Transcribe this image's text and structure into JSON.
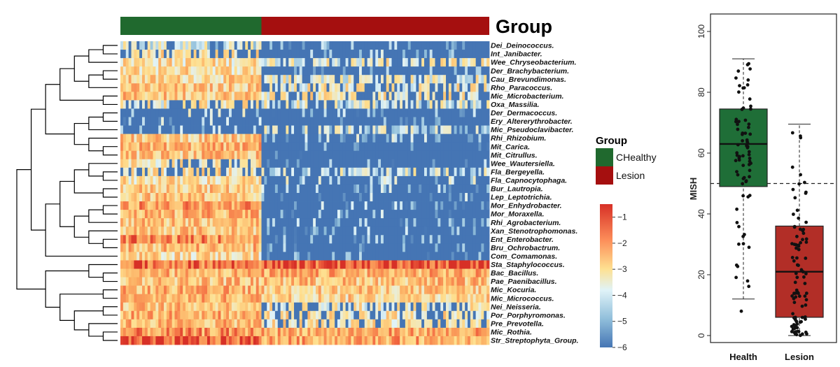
{
  "chart_data": [
    {
      "type": "heatmap",
      "title": "",
      "annotation": {
        "title": "Group",
        "groups": [
          {
            "name": "CHealthy",
            "count": 52,
            "color": "#20692e"
          },
          {
            "name": "Lesion",
            "count": 84,
            "color": "#a50f0f"
          }
        ]
      },
      "legend": {
        "title": "Group",
        "entries": [
          "CHealthy",
          "Lesion"
        ]
      },
      "rows": [
        "Dei_Deinococcus.",
        "Int_Janibacter.",
        "Wee_Chryseobacterium.",
        "Der_Brachybacterium.",
        "Cau_Brevundimonas.",
        "Rho_Paracoccus.",
        "Mic_Microbacterium.",
        "Oxa_Massilia.",
        "Der_Dermacoccus.",
        "Ery_Altererythrobacter.",
        "Mic_Pseudoclavibacter.",
        "Rhi_Rhizobium.",
        "Mit_Carica.",
        "Mit_Citrullus.",
        "Wee_Wautersiella.",
        "Fla_Bergeyella.",
        "Fla_Capnocytophaga.",
        "Bur_Lautropia.",
        "Lep_Leptotrichia.",
        "Mor_Enhydrobacter.",
        "Mor_Moraxella.",
        "Rhi_Agrobacterium.",
        "Xan_Stenotrophomonas.",
        "Ent_Enterobacter.",
        "Bru_Ochrobactrum.",
        "Com_Comamonas.",
        "Sta_Staphylococcus.",
        "Bac_Bacillus.",
        "Pae_Paenibacillus.",
        "Mic_Kocuria.",
        "Mic_Micrococcus.",
        "Nei_Neisseria.",
        "Por_Porphyromonas.",
        "Pre_Prevotella.",
        "Mic_Rothia.",
        "Str_Streptophyta_Group."
      ],
      "row_profile": [
        {
          "healthy": -4.0,
          "lesion": -4.8
        },
        {
          "healthy": -3.2,
          "lesion": -4.9
        },
        {
          "healthy": -3.0,
          "lesion": -3.6
        },
        {
          "healthy": -2.9,
          "lesion": -4.4
        },
        {
          "healthy": -2.8,
          "lesion": -3.7
        },
        {
          "healthy": -2.6,
          "lesion": -3.4
        },
        {
          "healthy": -2.5,
          "lesion": -3.3
        },
        {
          "healthy": -3.4,
          "lesion": -3.9
        },
        {
          "healthy": -4.4,
          "lesion": -5.0
        },
        {
          "healthy": -4.8,
          "lesion": -5.4
        },
        {
          "healthy": -4.5,
          "lesion": -4.2
        },
        {
          "healthy": -2.6,
          "lesion": -4.7
        },
        {
          "healthy": -2.2,
          "lesion": -5.6
        },
        {
          "healthy": -2.5,
          "lesion": -5.6
        },
        {
          "healthy": -3.2,
          "lesion": -5.3
        },
        {
          "healthy": -3.1,
          "lesion": -4.1
        },
        {
          "healthy": -3.0,
          "lesion": -4.3
        },
        {
          "healthy": -2.6,
          "lesion": -4.6
        },
        {
          "healthy": -2.5,
          "lesion": -4.8
        },
        {
          "healthy": -1.8,
          "lesion": -4.9
        },
        {
          "healthy": -2.2,
          "lesion": -5.0
        },
        {
          "healthy": -2.4,
          "lesion": -4.9
        },
        {
          "healthy": -2.5,
          "lesion": -5.0
        },
        {
          "healthy": -1.7,
          "lesion": -5.2
        },
        {
          "healthy": -2.3,
          "lesion": -5.2
        },
        {
          "healthy": -2.9,
          "lesion": -5.4
        },
        {
          "healthy": -1.2,
          "lesion": -0.8
        },
        {
          "healthy": -2.2,
          "lesion": -2.1
        },
        {
          "healthy": -2.4,
          "lesion": -2.4
        },
        {
          "healthy": -2.2,
          "lesion": -2.6
        },
        {
          "healthy": -2.2,
          "lesion": -2.7
        },
        {
          "healthy": -2.4,
          "lesion": -3.4
        },
        {
          "healthy": -2.1,
          "lesion": -3.2
        },
        {
          "healthy": -2.3,
          "lesion": -3.2
        },
        {
          "healthy": -1.8,
          "lesion": -2.0
        },
        {
          "healthy": -1.1,
          "lesion": -2.0
        }
      ],
      "colorbar": {
        "ticks": [
          -1,
          -2,
          -3,
          -4,
          -5,
          -6
        ],
        "range": [
          -6,
          -0.5
        ],
        "colors": [
          "#4575b4",
          "#fee090",
          "#d73027"
        ]
      },
      "dendrogram": "row clustering tree on left"
    },
    {
      "type": "box",
      "title": "",
      "ylabel": "MISH",
      "ylim": [
        0,
        100
      ],
      "yticks": [
        0,
        20,
        40,
        60,
        80,
        100
      ],
      "reference_line": 50,
      "categories": [
        "Health",
        "Lesion"
      ],
      "boxes": [
        {
          "name": "Health",
          "color": "#1f6e37",
          "whisker_low": 12,
          "q1": 49,
          "median": 63,
          "q3": 74.5,
          "whisker_high": 91,
          "outliers": [
            8
          ],
          "n_points": 75
        },
        {
          "name": "Lesion",
          "color": "#b22e27",
          "whisker_low": 0,
          "q1": 6,
          "median": 21,
          "q3": 36,
          "whisker_high": 69.5,
          "outliers": [],
          "n_points": 95
        }
      ]
    }
  ],
  "legend_title": "Group",
  "legend_entries": [
    "CHealthy",
    "Lesion"
  ],
  "annotation_title": "Group"
}
